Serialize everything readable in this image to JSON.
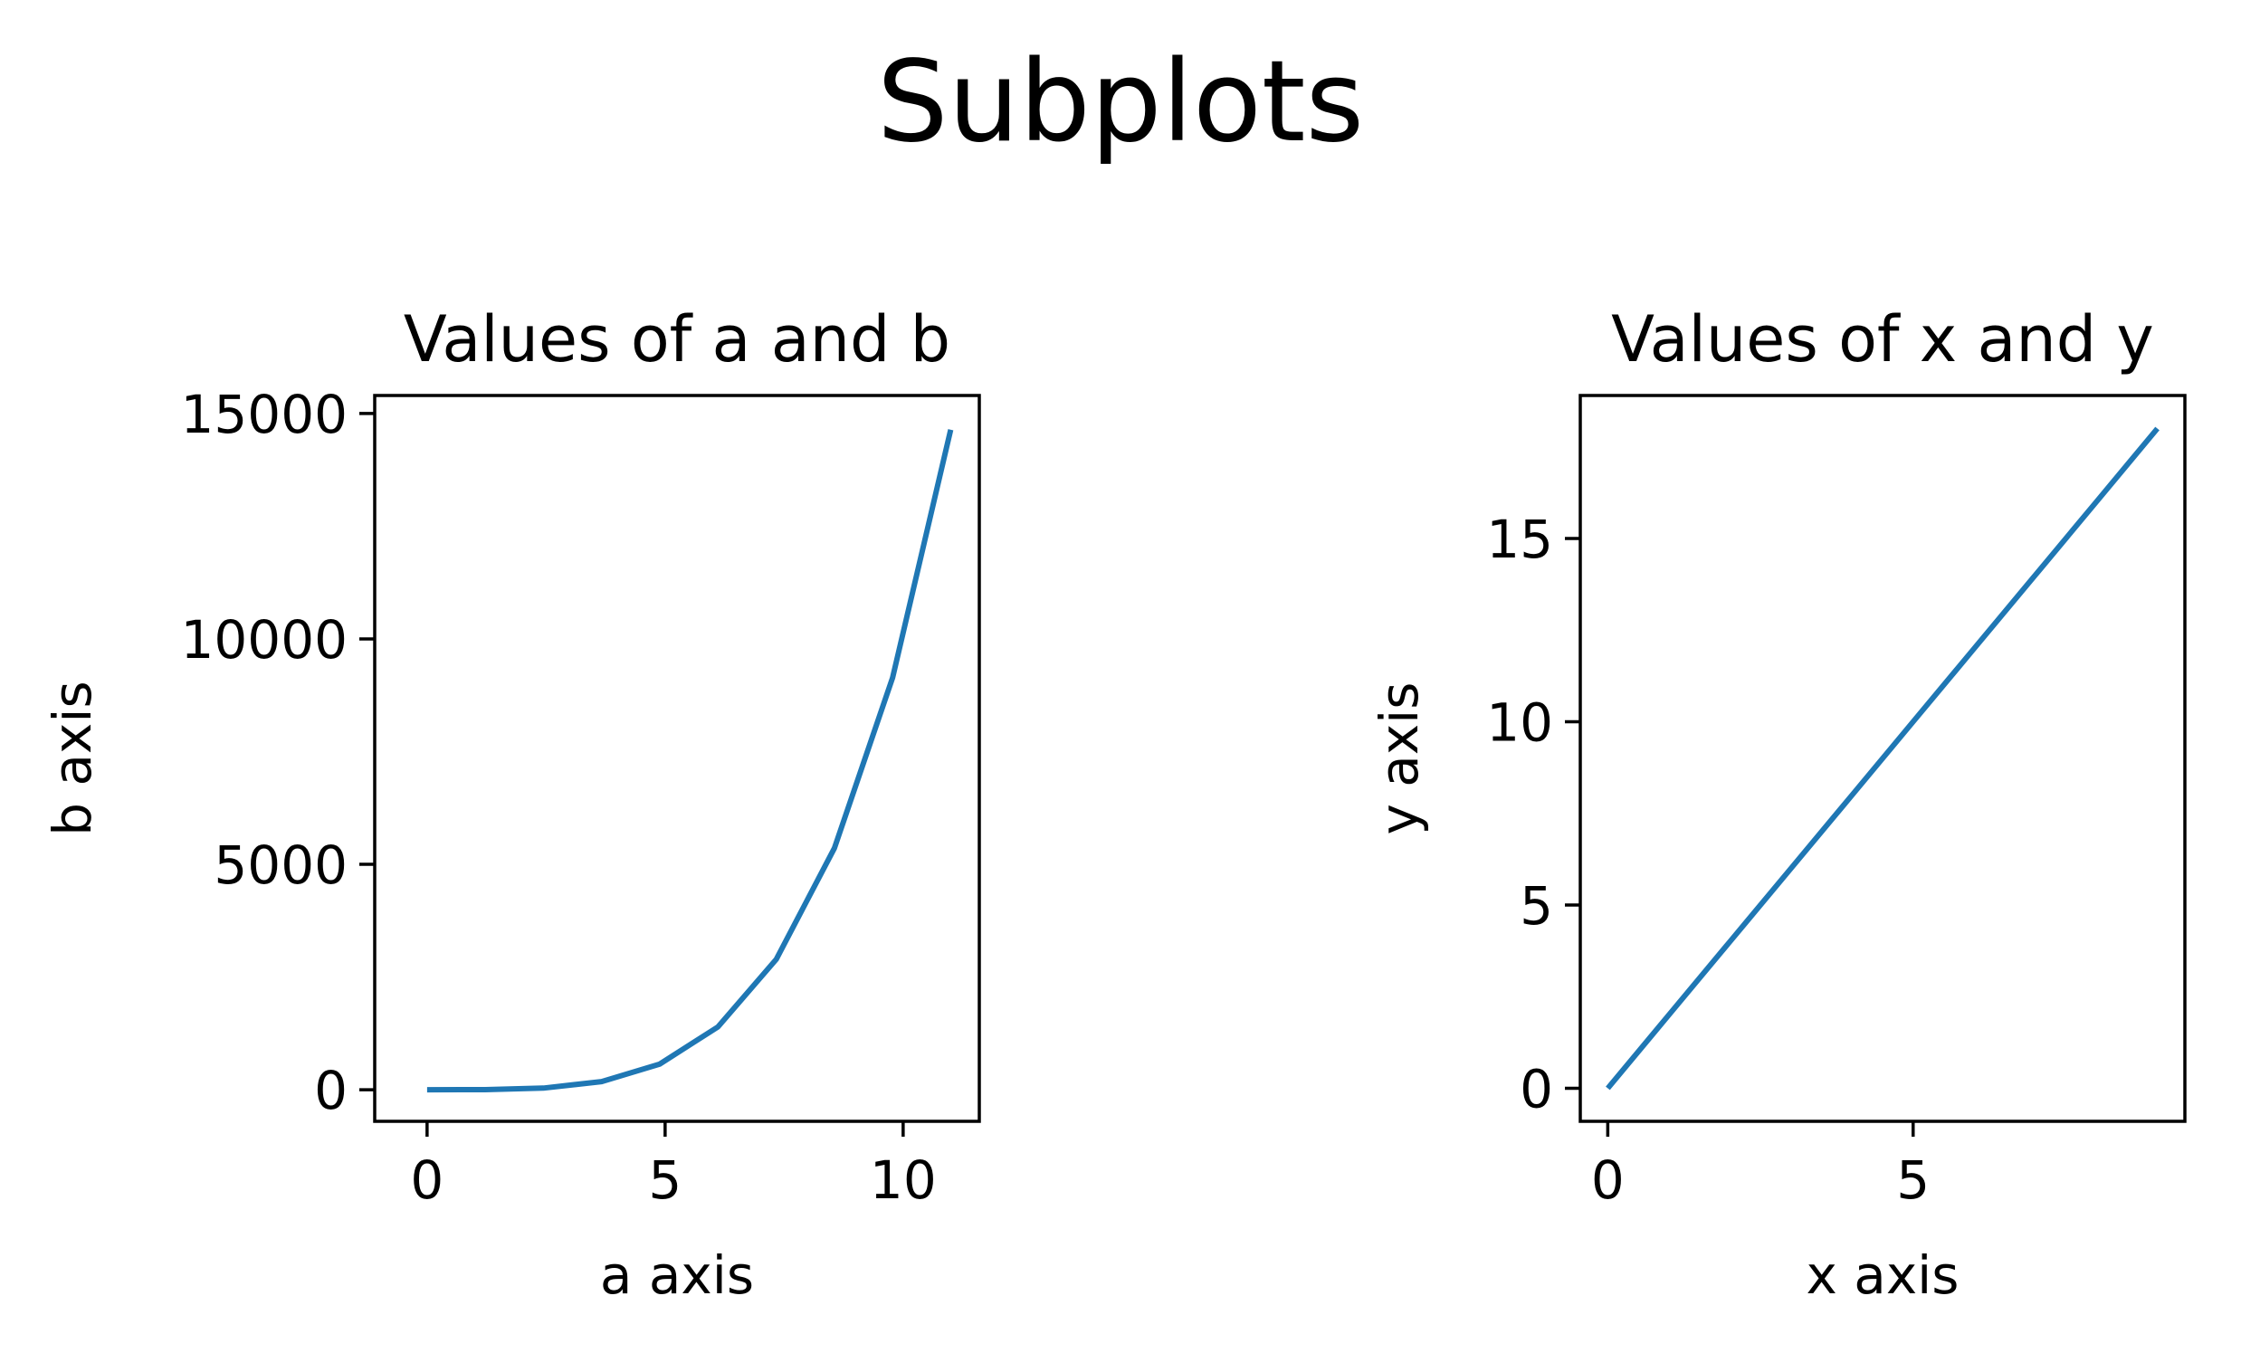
{
  "figure": {
    "suptitle": "Subplots"
  },
  "chart_data": [
    {
      "type": "line",
      "title": "Values of a and b",
      "xlabel": "a axis",
      "ylabel": "b axis",
      "xlim": [
        -1.1,
        11.6
      ],
      "ylim": [
        -700,
        15400
      ],
      "xticks": [
        0,
        5,
        10
      ],
      "xtick_labels": [
        "0",
        "5",
        "10"
      ],
      "yticks": [
        0,
        5000,
        10000,
        15000
      ],
      "ytick_labels": [
        "0",
        "5000",
        "10000",
        "15000"
      ],
      "grid": false,
      "legend": "none",
      "series": [
        {
          "color": "#1f77b4",
          "x": [
            0,
            1.222,
            2.444,
            3.667,
            4.889,
            6.111,
            7.333,
            8.556,
            9.778,
            11.0
          ],
          "y": [
            0,
            2,
            36,
            181,
            571,
            1395,
            2892,
            5358,
            9141,
            14641
          ]
        }
      ]
    },
    {
      "type": "line",
      "title": "Values of x and y",
      "xlabel": "x axis",
      "ylabel": "y axis",
      "xlim": [
        -0.45,
        9.45
      ],
      "ylim": [
        -0.9,
        18.9
      ],
      "xticks": [
        0,
        5
      ],
      "xtick_labels": [
        "0",
        "5"
      ],
      "yticks": [
        0,
        5,
        10,
        15
      ],
      "ytick_labels": [
        "0",
        "5",
        "10",
        "15"
      ],
      "grid": false,
      "legend": "none",
      "series": [
        {
          "color": "#1f77b4",
          "x": [
            0,
            1,
            2,
            3,
            4,
            5,
            6,
            7,
            8,
            9
          ],
          "y": [
            0,
            2,
            4,
            6,
            8,
            10,
            12,
            14,
            16,
            18
          ]
        }
      ]
    }
  ]
}
